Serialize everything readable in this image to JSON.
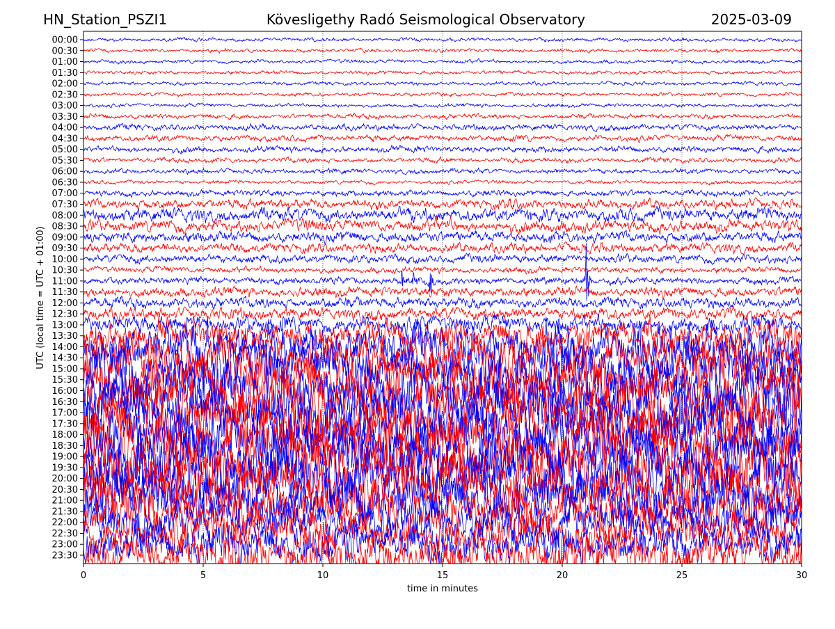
{
  "chart_data": {
    "type": "line",
    "chart_kind": "helicorder",
    "title_left": "HN_Station_PSZI1",
    "title_center": "Kövesligethy Radó Seismological Observatory",
    "title_right": "2025-03-09",
    "xlabel": "time in minutes",
    "ylabel": "UTC (local time = UTC + 01:00)",
    "xlim": [
      0,
      30
    ],
    "xticks": [
      "0",
      "5",
      "10",
      "15",
      "20",
      "25",
      "30"
    ],
    "xtick_values": [
      0,
      5,
      10,
      15,
      20,
      25,
      30
    ],
    "grid": "vertical dotted at x ticks",
    "colors": [
      "#0000ff",
      "#ff0000"
    ],
    "rows": [
      "00:00",
      "00:30",
      "01:00",
      "01:30",
      "02:00",
      "02:30",
      "03:00",
      "03:30",
      "04:00",
      "04:30",
      "05:00",
      "05:30",
      "06:00",
      "06:30",
      "07:00",
      "07:30",
      "08:00",
      "08:30",
      "09:00",
      "09:30",
      "10:00",
      "10:30",
      "11:00",
      "11:30",
      "12:00",
      "12:30",
      "13:00",
      "13:30",
      "14:00",
      "14:30",
      "15:00",
      "15:30",
      "16:00",
      "16:30",
      "17:00",
      "17:30",
      "18:00",
      "18:30",
      "19:00",
      "19:30",
      "20:00",
      "20:30",
      "21:00",
      "21:30",
      "22:00",
      "22:30",
      "23:00",
      "23:30"
    ],
    "relative_amplitude": [
      0.15,
      0.15,
      0.15,
      0.15,
      0.15,
      0.15,
      0.15,
      0.2,
      0.25,
      0.25,
      0.25,
      0.2,
      0.2,
      0.15,
      0.25,
      0.4,
      0.55,
      0.5,
      0.45,
      0.4,
      0.35,
      0.25,
      0.3,
      0.4,
      0.45,
      0.5,
      0.7,
      1.2,
      1.8,
      2.0,
      2.2,
      2.3,
      2.4,
      2.4,
      2.5,
      2.5,
      2.5,
      2.5,
      2.6,
      2.6,
      2.5,
      2.3,
      2.2,
      2.0,
      1.7,
      1.6,
      1.6,
      1.7
    ],
    "events": [
      {
        "row": "11:00",
        "minute": 13.3,
        "amplitude": 1.0
      },
      {
        "row": "11:00",
        "minute": 13.8,
        "amplitude": 1.4
      },
      {
        "row": "11:00",
        "minute": 14.5,
        "amplitude": 1.2
      },
      {
        "row": "11:00",
        "minute": 21.0,
        "amplitude": 4.0
      }
    ]
  }
}
